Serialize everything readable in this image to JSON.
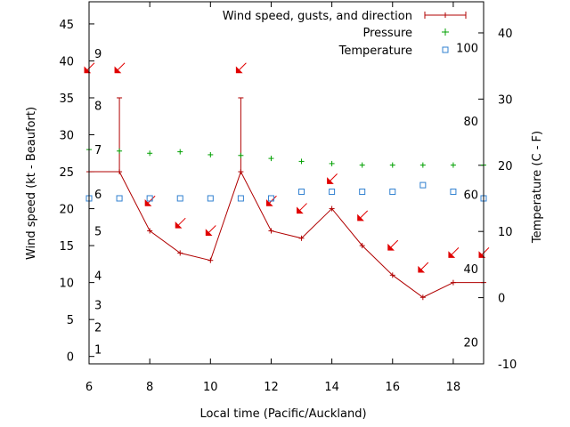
{
  "chart_data": {
    "type": "line",
    "xlabel": "Local time (Pacific/Auckland)",
    "ylabel_left": "Wind speed (kt - Beaufort)",
    "ylabel_right": "Temperature (C - F)",
    "xlim": [
      6,
      19
    ],
    "ylim_left": [
      -1,
      48
    ],
    "ylim_right": [
      -10,
      44.7
    ],
    "x_ticks": [
      6,
      8,
      10,
      12,
      14,
      16,
      18
    ],
    "y_left_ticks": [
      0,
      5,
      10,
      15,
      20,
      25,
      30,
      35,
      40,
      45
    ],
    "y_right_ticks": [
      -10,
      0,
      10,
      20,
      30,
      40
    ],
    "beaufort_labels": [
      {
        "label": "1",
        "kt": 1
      },
      {
        "label": "2",
        "kt": 4
      },
      {
        "label": "3",
        "kt": 7
      },
      {
        "label": "4",
        "kt": 11
      },
      {
        "label": "5",
        "kt": 17
      },
      {
        "label": "6",
        "kt": 22
      },
      {
        "label": "7",
        "kt": 28
      },
      {
        "label": "8",
        "kt": 34
      },
      {
        "label": "9",
        "kt": 41
      }
    ],
    "fahrenheit_labels": [
      {
        "label": "20",
        "c": -6.7
      },
      {
        "label": "40",
        "c": 4.4
      },
      {
        "label": "60",
        "c": 15.6
      },
      {
        "label": "80",
        "c": 26.7
      },
      {
        "label": "100",
        "c": 37.8
      }
    ],
    "legend": {
      "position": "top-right",
      "entries": [
        "Wind speed, gusts, and direction",
        "Pressure",
        "Temperature"
      ]
    },
    "series": [
      {
        "name": "Wind speed, gusts, and direction",
        "axis": "left",
        "color": "#b00000",
        "x": [
          6,
          7,
          8,
          9,
          10,
          11,
          12,
          13,
          14,
          15,
          16,
          17,
          18,
          19
        ],
        "values": [
          25,
          25,
          17,
          14,
          13,
          25,
          17,
          16,
          20,
          15,
          11,
          8,
          10,
          10
        ],
        "gust_x": [
          7,
          11
        ],
        "gust_values": [
          35,
          35
        ],
        "arrows": [
          {
            "x": 6,
            "y": 39
          },
          {
            "x": 7,
            "y": 39
          },
          {
            "x": 8,
            "y": 21
          },
          {
            "x": 9,
            "y": 18
          },
          {
            "x": 10,
            "y": 17
          },
          {
            "x": 11,
            "y": 39
          },
          {
            "x": 12,
            "y": 21
          },
          {
            "x": 13,
            "y": 20
          },
          {
            "x": 14,
            "y": 24
          },
          {
            "x": 15,
            "y": 19
          },
          {
            "x": 16,
            "y": 15
          },
          {
            "x": 17,
            "y": 12
          },
          {
            "x": 18,
            "y": 14
          },
          {
            "x": 19,
            "y": 14
          }
        ]
      },
      {
        "name": "Pressure",
        "axis": "left",
        "color": "#00a000",
        "x": [
          6,
          7,
          8,
          9,
          10,
          11,
          12,
          13,
          14,
          15,
          16,
          17,
          18,
          19
        ],
        "values": [
          28,
          27.8,
          27.5,
          27.7,
          27.3,
          27.2,
          26.8,
          26.4,
          26.1,
          25.9,
          25.9,
          25.9,
          25.9,
          25.9
        ]
      },
      {
        "name": "Temperature",
        "axis": "right",
        "color": "#3080d0",
        "x": [
          6,
          7,
          8,
          9,
          10,
          11,
          12,
          13,
          14,
          15,
          16,
          17,
          18,
          19
        ],
        "values": [
          15,
          15,
          15,
          15,
          15,
          15,
          15,
          16,
          16,
          16,
          16,
          17,
          16,
          15
        ]
      }
    ]
  }
}
